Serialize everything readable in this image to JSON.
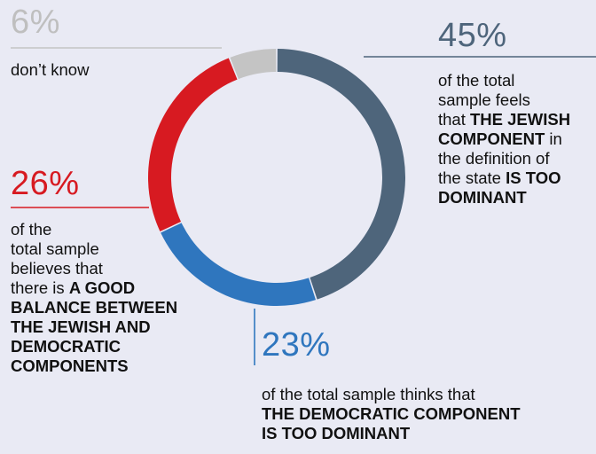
{
  "chart_data": {
    "type": "pie",
    "variant": "donut",
    "slices": [
      {
        "key": "jewish",
        "value": 45,
        "label": "45%",
        "color": "#4e657b",
        "desc": [
          {
            "t": "of the total",
            "b": false,
            "br": true
          },
          {
            "t": "sample feels",
            "b": false,
            "br": true
          },
          {
            "t": "that ",
            "b": false
          },
          {
            "t": "THE JEWISH",
            "b": true,
            "br": true
          },
          {
            "t": "COMPONENT",
            "b": true
          },
          {
            "t": " in",
            "b": false,
            "br": true
          },
          {
            "t": "the definition of",
            "b": false,
            "br": true
          },
          {
            "t": "the state ",
            "b": false
          },
          {
            "t": "IS TOO",
            "b": true,
            "br": true
          },
          {
            "t": "DOMINANT",
            "b": true
          }
        ]
      },
      {
        "key": "democratic",
        "value": 23,
        "label": "23%",
        "color": "#2f76be",
        "desc": [
          {
            "t": "of the total sample thinks that",
            "b": false,
            "br": true
          },
          {
            "t": "THE DEMOCRATIC COMPONENT",
            "b": true,
            "br": true
          },
          {
            "t": "IS TOO DOMINANT",
            "b": true
          }
        ]
      },
      {
        "key": "balance",
        "value": 26,
        "label": "26%",
        "color": "#d71a21",
        "desc": [
          {
            "t": "of the",
            "b": false,
            "br": true
          },
          {
            "t": "total sample",
            "b": false,
            "br": true
          },
          {
            "t": "believes that",
            "b": false,
            "br": true
          },
          {
            "t": "there is ",
            "b": false
          },
          {
            "t": "A GOOD",
            "b": true,
            "br": true
          },
          {
            "t": "BALANCE BETWEEN",
            "b": true,
            "br": true
          },
          {
            "t": "THE JEWISH AND",
            "b": true,
            "br": true
          },
          {
            "t": "DEMOCRATIC",
            "b": true,
            "br": true
          },
          {
            "t": "COMPONENTS",
            "b": true
          }
        ]
      },
      {
        "key": "dk",
        "value": 6,
        "label": "6%",
        "color": "#c4c4c4",
        "desc": [
          {
            "t": "don’t know",
            "b": false
          }
        ]
      }
    ],
    "start_angle_deg": 0,
    "direction": "clockwise"
  }
}
